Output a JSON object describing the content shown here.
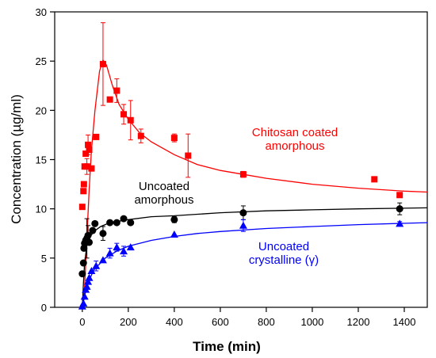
{
  "chart_data": {
    "type": "scatter",
    "xlabel": "Time (min)",
    "ylabel": "Concentration (µg/ml)",
    "xlim": [
      -120,
      1500
    ],
    "ylim": [
      0,
      30
    ],
    "xticks": [
      0,
      200,
      400,
      600,
      800,
      1000,
      1200,
      1400
    ],
    "yticks": [
      0,
      5,
      10,
      15,
      20,
      25,
      30
    ],
    "grid": false,
    "legend": "none",
    "series": [
      {
        "name": "Chitosan coated amorphous",
        "label_lines": [
          "Chitosan coated",
          "amorphous"
        ],
        "color": "#ff0000",
        "marker": "square",
        "points": [
          {
            "x": 0,
            "y": 10.2,
            "err": 0
          },
          {
            "x": 5,
            "y": 11.8,
            "err": 0
          },
          {
            "x": 7,
            "y": 12.5,
            "err": 0
          },
          {
            "x": 10,
            "y": 14.3,
            "err": 0
          },
          {
            "x": 15,
            "y": 15.6,
            "err": 0
          },
          {
            "x": 20,
            "y": 14.3,
            "err": 0.8
          },
          {
            "x": 25,
            "y": 16.5,
            "err": 1.0
          },
          {
            "x": 30,
            "y": 16.0,
            "err": 0
          },
          {
            "x": 40,
            "y": 14.1,
            "err": 0
          },
          {
            "x": 60,
            "y": 17.3,
            "err": 0
          },
          {
            "x": 90,
            "y": 24.7,
            "err": 4.2
          },
          {
            "x": 120,
            "y": 21.1,
            "err": 0
          },
          {
            "x": 150,
            "y": 22.0,
            "err": 1.2
          },
          {
            "x": 180,
            "y": 19.6,
            "err": 1.0
          },
          {
            "x": 210,
            "y": 19.0,
            "err": 2.0
          },
          {
            "x": 255,
            "y": 17.4,
            "err": 0.7
          },
          {
            "x": 400,
            "y": 17.2,
            "err": 0.4
          },
          {
            "x": 460,
            "y": 15.4,
            "err": 2.2
          },
          {
            "x": 700,
            "y": 13.5,
            "err": 0.3
          },
          {
            "x": 1270,
            "y": 13.0,
            "err": 0
          },
          {
            "x": 1380,
            "y": 11.4,
            "err": 0
          }
        ],
        "curve": [
          [
            0,
            0
          ],
          [
            10,
            2
          ],
          [
            20,
            7
          ],
          [
            30,
            12
          ],
          [
            40,
            16
          ],
          [
            55,
            20
          ],
          [
            75,
            24
          ],
          [
            90,
            25.1
          ],
          [
            105,
            24.6
          ],
          [
            130,
            22.6
          ],
          [
            160,
            20.6
          ],
          [
            200,
            19.1
          ],
          [
            250,
            17.7
          ],
          [
            300,
            16.8
          ],
          [
            400,
            15.5
          ],
          [
            500,
            14.5
          ],
          [
            600,
            13.9
          ],
          [
            700,
            13.5
          ],
          [
            800,
            13.1
          ],
          [
            1000,
            12.5
          ],
          [
            1200,
            12.1
          ],
          [
            1400,
            11.8
          ],
          [
            1500,
            11.7
          ]
        ]
      },
      {
        "name": "Uncoated amorphous",
        "label_lines": [
          "Uncoated",
          "amorphous"
        ],
        "color": "#000000",
        "marker": "circle",
        "points": [
          {
            "x": 0,
            "y": 3.4,
            "err": 0
          },
          {
            "x": 5,
            "y": 4.5,
            "err": 0
          },
          {
            "x": 7,
            "y": 6.0,
            "err": 0
          },
          {
            "x": 10,
            "y": 6.5,
            "err": 0
          },
          {
            "x": 15,
            "y": 6.8,
            "err": 0
          },
          {
            "x": 20,
            "y": 7.0,
            "err": 2.0
          },
          {
            "x": 25,
            "y": 7.3,
            "err": 1.0
          },
          {
            "x": 30,
            "y": 6.6,
            "err": 0
          },
          {
            "x": 45,
            "y": 7.8,
            "err": 0
          },
          {
            "x": 55,
            "y": 8.5,
            "err": 0
          },
          {
            "x": 90,
            "y": 7.5,
            "err": 0.7
          },
          {
            "x": 120,
            "y": 8.6,
            "err": 0
          },
          {
            "x": 150,
            "y": 8.6,
            "err": 0
          },
          {
            "x": 180,
            "y": 9.0,
            "err": 0
          },
          {
            "x": 210,
            "y": 8.6,
            "err": 0
          },
          {
            "x": 400,
            "y": 8.9,
            "err": 0.3
          },
          {
            "x": 700,
            "y": 9.6,
            "err": 0.7
          },
          {
            "x": 1380,
            "y": 10.0,
            "err": 0.6
          }
        ],
        "curve": [
          [
            0,
            0
          ],
          [
            5,
            2.5
          ],
          [
            10,
            4.5
          ],
          [
            20,
            6.3
          ],
          [
            30,
            7.0
          ],
          [
            50,
            7.7
          ],
          [
            80,
            8.2
          ],
          [
            120,
            8.6
          ],
          [
            200,
            8.9
          ],
          [
            300,
            9.2
          ],
          [
            400,
            9.3
          ],
          [
            600,
            9.6
          ],
          [
            800,
            9.8
          ],
          [
            1000,
            9.9
          ],
          [
            1200,
            10.0
          ],
          [
            1500,
            10.1
          ]
        ]
      },
      {
        "name": "Uncoated crystalline (γ)",
        "label_lines": [
          "Uncoated",
          "crystalline (γ)"
        ],
        "color": "#0000ff",
        "marker": "triangle",
        "points": [
          {
            "x": 0,
            "y": 0.1,
            "err": 0
          },
          {
            "x": 5,
            "y": 0.4,
            "err": 0
          },
          {
            "x": 10,
            "y": 1.1,
            "err": 0
          },
          {
            "x": 15,
            "y": 1.8,
            "err": 0
          },
          {
            "x": 20,
            "y": 2.1,
            "err": 0
          },
          {
            "x": 25,
            "y": 2.6,
            "err": 0
          },
          {
            "x": 30,
            "y": 3.0,
            "err": 0
          },
          {
            "x": 40,
            "y": 3.7,
            "err": 0
          },
          {
            "x": 60,
            "y": 4.2,
            "err": 0.5
          },
          {
            "x": 90,
            "y": 4.8,
            "err": 0
          },
          {
            "x": 120,
            "y": 5.5,
            "err": 0.5
          },
          {
            "x": 150,
            "y": 6.1,
            "err": 0.4
          },
          {
            "x": 180,
            "y": 5.7,
            "err": 0.5
          },
          {
            "x": 210,
            "y": 6.1,
            "err": 0
          },
          {
            "x": 400,
            "y": 7.4,
            "err": 0
          },
          {
            "x": 700,
            "y": 8.3,
            "err": 0.6
          },
          {
            "x": 1380,
            "y": 8.5,
            "err": 0.2
          }
        ],
        "curve": [
          [
            0,
            0
          ],
          [
            20,
            2.2
          ],
          [
            50,
            3.8
          ],
          [
            100,
            5.0
          ],
          [
            150,
            5.7
          ],
          [
            200,
            6.2
          ],
          [
            300,
            6.8
          ],
          [
            400,
            7.2
          ],
          [
            500,
            7.5
          ],
          [
            600,
            7.7
          ],
          [
            800,
            8.0
          ],
          [
            1000,
            8.2
          ],
          [
            1200,
            8.4
          ],
          [
            1500,
            8.6
          ]
        ]
      }
    ]
  }
}
